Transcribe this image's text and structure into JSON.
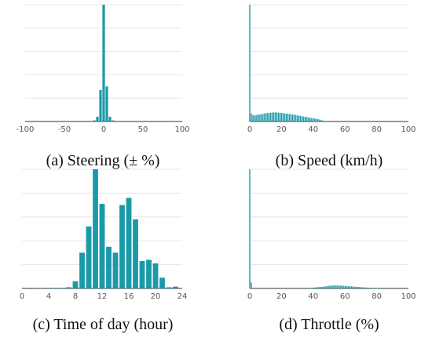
{
  "figure": {
    "bar_color": "#1a9aa8",
    "grid_color": "#e6e6e6",
    "axis_color": "#333333"
  },
  "chart_data": [
    {
      "type": "bar",
      "caption": "(a) Steering (± %)",
      "xlim": [
        -100,
        100
      ],
      "xticks": [
        -100,
        -50,
        0,
        50,
        100
      ],
      "ylim": [
        0,
        1
      ],
      "grid": true,
      "bar_width": 3.2,
      "x": [
        -12,
        -8,
        -4,
        0,
        4,
        8,
        12
      ],
      "values": [
        0.01,
        0.04,
        0.27,
        1.0,
        0.3,
        0.04,
        0.01
      ]
    },
    {
      "type": "bar",
      "caption": "(b) Speed (km/h)",
      "xlim": [
        0,
        100
      ],
      "xticks": [
        0,
        20,
        40,
        60,
        80,
        100
      ],
      "ylim": [
        0,
        1
      ],
      "grid": true,
      "bar_width": 0.7,
      "x": [
        0,
        1,
        2,
        3,
        4,
        5,
        6,
        7,
        8,
        9,
        10,
        11,
        12,
        13,
        14,
        15,
        16,
        17,
        18,
        19,
        20,
        21,
        22,
        23,
        24,
        25,
        26,
        27,
        28,
        29,
        30,
        31,
        32,
        33,
        34,
        35,
        36,
        37,
        38,
        39,
        40,
        41,
        42,
        43,
        44,
        45,
        46,
        47,
        48
      ],
      "values": [
        1.0,
        0.07,
        0.055,
        0.052,
        0.055,
        0.058,
        0.06,
        0.062,
        0.064,
        0.068,
        0.07,
        0.072,
        0.074,
        0.075,
        0.076,
        0.078,
        0.078,
        0.077,
        0.076,
        0.075,
        0.074,
        0.072,
        0.07,
        0.068,
        0.066,
        0.064,
        0.062,
        0.06,
        0.058,
        0.055,
        0.052,
        0.05,
        0.047,
        0.045,
        0.042,
        0.04,
        0.038,
        0.035,
        0.033,
        0.03,
        0.028,
        0.025,
        0.022,
        0.02,
        0.016,
        0.012,
        0.008,
        0.005,
        0.003
      ]
    },
    {
      "type": "bar",
      "caption": "(c) Time of day (hour)",
      "xlim": [
        0,
        24
      ],
      "xticks": [
        0,
        4,
        8,
        12,
        16,
        20,
        24
      ],
      "ylim": [
        0,
        1
      ],
      "grid": true,
      "bar_width": 0.8,
      "x": [
        4,
        5,
        6,
        7,
        8,
        9,
        10,
        11,
        12,
        13,
        14,
        15,
        16,
        17,
        18,
        19,
        20,
        21,
        22,
        23
      ],
      "values": [
        0.005,
        0.005,
        0.005,
        0.01,
        0.06,
        0.3,
        0.52,
        1.0,
        0.71,
        0.35,
        0.3,
        0.7,
        0.76,
        0.58,
        0.23,
        0.24,
        0.21,
        0.09,
        0.01,
        0.015
      ]
    },
    {
      "type": "bar",
      "caption": "(d) Throttle (%)",
      "xlim": [
        0,
        100
      ],
      "xticks": [
        0,
        20,
        40,
        60,
        80,
        100
      ],
      "ylim": [
        0,
        1
      ],
      "grid": true,
      "bar_width": 0.7,
      "x": [
        0,
        1,
        38,
        39,
        40,
        41,
        42,
        43,
        44,
        45,
        46,
        47,
        48,
        49,
        50,
        51,
        52,
        53,
        54,
        55,
        56,
        57,
        58,
        59,
        60,
        61,
        62,
        63,
        64,
        65,
        66,
        67,
        68,
        69,
        70,
        71,
        72,
        73,
        74,
        75,
        76,
        77,
        78,
        79,
        80,
        81,
        82
      ],
      "values": [
        1.0,
        0.05,
        0.003,
        0.005,
        0.006,
        0.008,
        0.009,
        0.011,
        0.012,
        0.013,
        0.014,
        0.016,
        0.018,
        0.02,
        0.022,
        0.023,
        0.024,
        0.025,
        0.025,
        0.025,
        0.024,
        0.024,
        0.023,
        0.022,
        0.021,
        0.02,
        0.019,
        0.018,
        0.017,
        0.016,
        0.015,
        0.014,
        0.013,
        0.012,
        0.011,
        0.01,
        0.009,
        0.008,
        0.007,
        0.006,
        0.005,
        0.004,
        0.003,
        0.002,
        0.002,
        0.001,
        0.001
      ]
    }
  ]
}
